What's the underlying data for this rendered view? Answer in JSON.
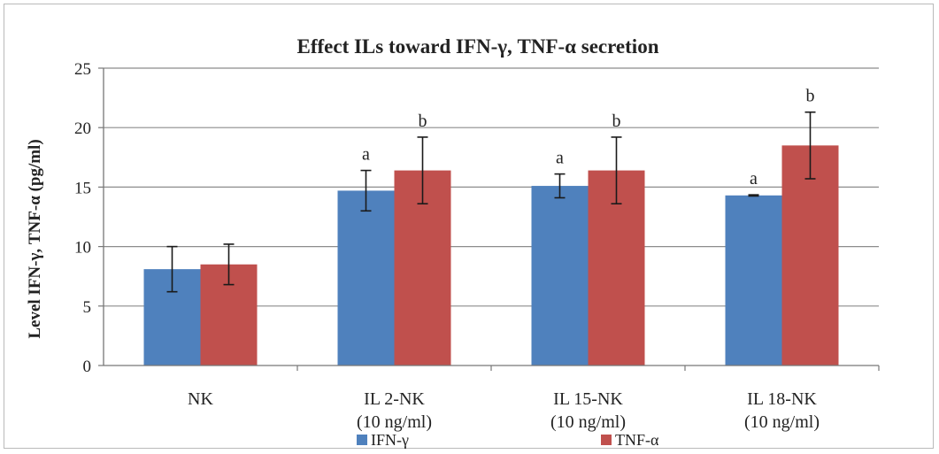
{
  "chart_data": {
    "type": "bar",
    "title": "Effect ILs toward IFN-γ, TNF-α secretion",
    "ylabel": "Level IFN-γ, TNF-α (pg/ml)",
    "xlabel": "",
    "ylim": [
      0,
      25
    ],
    "yticks": [
      "0",
      "5",
      "10",
      "15",
      "20",
      "25"
    ],
    "categories": [
      [
        "NK"
      ],
      [
        "IL 2-NK",
        "(10 ng/ml)"
      ],
      [
        "IL 15-NK",
        "(10 ng/ml)"
      ],
      [
        "IL 18-NK",
        "(10 ng/ml)"
      ]
    ],
    "series": [
      {
        "name": "IFN-γ",
        "color": "#4f81bd",
        "values": [
          8.1,
          14.7,
          15.1,
          14.3
        ],
        "errors": [
          1.9,
          1.7,
          1.0,
          0.05
        ],
        "labels": [
          "",
          "a",
          "a",
          "a"
        ]
      },
      {
        "name": "TNF-α",
        "color": "#c0504d",
        "values": [
          8.5,
          16.4,
          16.4,
          18.5
        ],
        "errors": [
          1.7,
          2.8,
          2.8,
          2.8
        ],
        "labels": [
          "",
          "b",
          "b",
          "b"
        ]
      }
    ],
    "grid": true,
    "legend": "bottom"
  }
}
